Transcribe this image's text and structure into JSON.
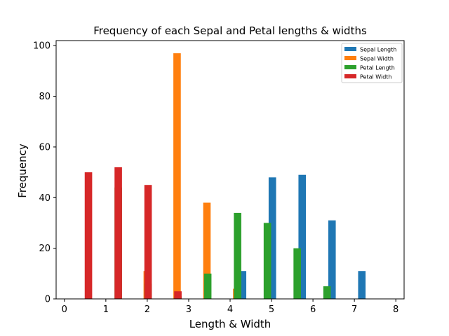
{
  "chart_data": {
    "type": "bar",
    "title": "Frequency of each Sepal and Petal lengths & widths",
    "xlabel": "Length & Width",
    "ylabel": "Frequency",
    "xlim": [
      -0.2,
      8.2
    ],
    "ylim": [
      0,
      102
    ],
    "xticks": [
      0,
      1,
      2,
      3,
      4,
      5,
      6,
      7,
      8
    ],
    "yticks": [
      0,
      20,
      40,
      60,
      80,
      100
    ],
    "grid": false,
    "legend_position": "top-right",
    "series": [
      {
        "name": "Sepal Length",
        "color": "#1f77b4",
        "x": [
          4.3,
          5.02,
          5.74,
          6.46,
          7.18
        ],
        "values": [
          11,
          48,
          49,
          31,
          11
        ]
      },
      {
        "name": "Sepal Width",
        "color": "#ff7f0e",
        "x": [
          2.0,
          2.72,
          3.44,
          4.16
        ],
        "values": [
          11,
          97,
          38,
          4
        ]
      },
      {
        "name": "Petal Length",
        "color": "#2ca02c",
        "x": [
          1.3,
          2.02,
          2.74,
          3.46,
          4.18,
          4.9,
          5.62,
          6.34,
          7.06
        ],
        "values": [
          44,
          6,
          1,
          10,
          34,
          30,
          20,
          5,
          0
        ]
      },
      {
        "name": "Petal Width",
        "color": "#d62728",
        "x": [
          0.58,
          1.3,
          2.02,
          2.74
        ],
        "values": [
          50,
          52,
          45,
          3
        ]
      }
    ]
  }
}
